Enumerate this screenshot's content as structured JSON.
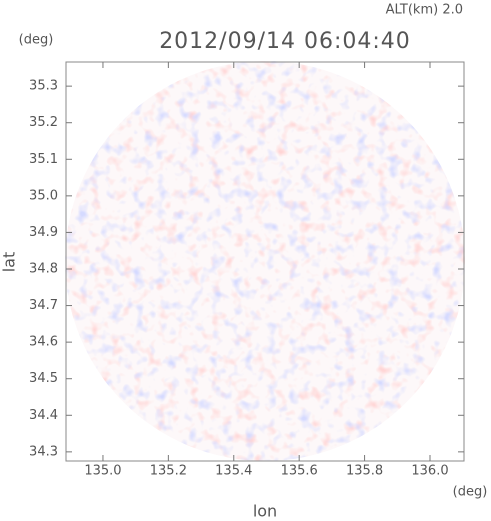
{
  "chart_data": {
    "type": "radar",
    "title": "2012/09/14 06:04:40",
    "subtitle": "ALT(km) 2.0",
    "x_label": "lon",
    "x_unit": "(deg)",
    "y_label": "lat",
    "y_unit": "(deg)",
    "xlim": [
      134.887,
      136.104
    ],
    "ylim": [
      34.275,
      35.366
    ],
    "xticks": [
      {
        "value": 135.0,
        "label": "135.0"
      },
      135.2,
      135.4,
      135.6,
      135.8,
      {
        "value": 136.0,
        "label": "136.0"
      }
    ],
    "yticks": [
      34.3,
      34.4,
      34.5,
      34.6,
      34.7,
      34.8,
      34.9,
      {
        "value": 35.0,
        "label": "35.0"
      },
      35.1,
      35.2,
      35.3
    ]
  }
}
